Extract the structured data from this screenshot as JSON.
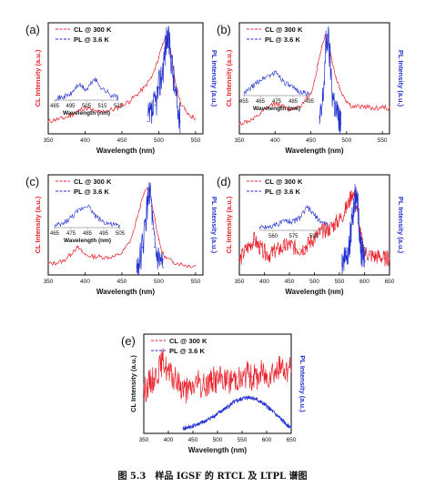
{
  "caption": "图 5.3　样品 IGSF 的 RTCL 及 LTPL 谱图",
  "colors": {
    "cl": "#e8212b",
    "pl": "#1f2fd0",
    "axis": "#000000",
    "box": "#9a9a9a"
  },
  "chart_data": [
    {
      "type": "line",
      "panel_label": "(a)",
      "xlabel": "Wavelength (nm)",
      "ylabel_left": "CL Intensity (a.u.)",
      "ylabel_right": "PL Intensity (a.u.)",
      "xlim": [
        350,
        560
      ],
      "xticks": [
        350,
        400,
        450,
        500,
        550
      ],
      "ylim": [
        0,
        1
      ],
      "legend_position": "top-left",
      "series": [
        {
          "name": "CL @ 300 K",
          "x": [
            350,
            360,
            370,
            380,
            390,
            400,
            410,
            420,
            430,
            440,
            450,
            460,
            470,
            480,
            490,
            495,
            500,
            505,
            510,
            515,
            520,
            525,
            530,
            535,
            540,
            545,
            550
          ],
          "values": [
            0.12,
            0.14,
            0.15,
            0.18,
            0.22,
            0.26,
            0.23,
            0.21,
            0.23,
            0.24,
            0.28,
            0.32,
            0.38,
            0.45,
            0.55,
            0.63,
            0.75,
            0.88,
            0.95,
            0.83,
            0.62,
            0.42,
            0.3,
            0.24,
            0.2,
            0.17,
            0.15
          ]
        },
        {
          "name": "PL @ 3.6 K",
          "x": [
            485,
            490,
            495,
            500,
            505,
            508,
            511,
            514,
            517,
            520,
            523,
            526,
            529
          ],
          "values": [
            0.12,
            0.18,
            0.28,
            0.45,
            0.62,
            0.78,
            0.95,
            0.9,
            0.75,
            0.55,
            0.38,
            0.22,
            0.12
          ]
        }
      ],
      "inset": {
        "xlabel": "Wavelength (nm)",
        "xticks": [
          485,
          495,
          505,
          515,
          525
        ],
        "x": [
          485,
          490,
          495,
          500,
          505,
          510,
          515,
          520,
          525
        ],
        "values": [
          0.05,
          0.1,
          0.2,
          0.55,
          0.35,
          0.75,
          0.4,
          0.2,
          0.08
        ]
      }
    },
    {
      "type": "line",
      "panel_label": "(b)",
      "xlabel": "Wavelength (nm)",
      "ylabel_left": "CL Intensity (a.u.)",
      "ylabel_right": "PL Intensity (a.u.)",
      "xlim": [
        350,
        560
      ],
      "xticks": [
        350,
        400,
        450,
        500,
        550
      ],
      "ylim": [
        0,
        1
      ],
      "legend_position": "top-left",
      "series": [
        {
          "name": "CL @ 300 K",
          "x": [
            350,
            360,
            370,
            380,
            390,
            400,
            410,
            420,
            430,
            440,
            450,
            455,
            460,
            465,
            470,
            475,
            480,
            485,
            490,
            495,
            500,
            505,
            510,
            520,
            530,
            540,
            550,
            560
          ],
          "values": [
            0.1,
            0.12,
            0.14,
            0.2,
            0.26,
            0.3,
            0.27,
            0.24,
            0.26,
            0.3,
            0.4,
            0.52,
            0.68,
            0.85,
            0.96,
            0.88,
            0.7,
            0.55,
            0.45,
            0.38,
            0.32,
            0.28,
            0.26,
            0.27,
            0.26,
            0.25,
            0.26,
            0.25
          ]
        },
        {
          "name": "PL @ 3.6 K",
          "x": [
            462,
            465,
            468,
            471,
            474,
            477,
            480,
            483,
            486,
            489,
            492
          ],
          "values": [
            0.1,
            0.2,
            0.45,
            0.85,
            0.96,
            0.7,
            0.4,
            0.3,
            0.2,
            0.14,
            0.1
          ]
        }
      ],
      "inset": {
        "xlabel": "Wavelength (nm)",
        "xticks": [
          455,
          465,
          475,
          485,
          495
        ],
        "x": [
          455,
          460,
          465,
          470,
          475,
          480,
          485,
          490,
          495
        ],
        "values": [
          0.05,
          0.3,
          0.55,
          0.7,
          0.8,
          0.45,
          0.25,
          0.12,
          0.05
        ]
      }
    },
    {
      "type": "line",
      "panel_label": "(c)",
      "xlabel": "Wavelength (nm)",
      "ylabel_left": "CL Intensity (a.u.)",
      "ylabel_right": "PL Intensity (a.u.)",
      "xlim": [
        350,
        560
      ],
      "xticks": [
        350,
        400,
        450,
        500,
        550
      ],
      "ylim": [
        0,
        1
      ],
      "legend_position": "top-left",
      "series": [
        {
          "name": "CL @ 300 K",
          "x": [
            350,
            360,
            370,
            380,
            385,
            390,
            395,
            400,
            410,
            420,
            430,
            440,
            450,
            460,
            465,
            470,
            475,
            480,
            485,
            490,
            495,
            500,
            505,
            510,
            520,
            530,
            540,
            550
          ],
          "values": [
            0.12,
            0.13,
            0.15,
            0.22,
            0.27,
            0.3,
            0.26,
            0.22,
            0.2,
            0.2,
            0.19,
            0.2,
            0.24,
            0.35,
            0.45,
            0.6,
            0.75,
            0.88,
            0.95,
            0.82,
            0.6,
            0.38,
            0.24,
            0.18,
            0.14,
            0.12,
            0.1,
            0.1
          ]
        },
        {
          "name": "PL @ 3.6 K",
          "x": [
            470,
            474,
            478,
            482,
            486,
            488,
            490,
            492,
            494,
            497,
            500,
            503,
            506
          ],
          "values": [
            0.08,
            0.15,
            0.3,
            0.55,
            0.85,
            0.95,
            0.75,
            0.5,
            0.3,
            0.2,
            0.15,
            0.12,
            0.08
          ]
        }
      ],
      "inset": {
        "xlabel": "Wavelength (nm)",
        "xticks": [
          465,
          475,
          485,
          495,
          505
        ],
        "x": [
          465,
          470,
          475,
          480,
          485,
          490,
          495,
          500,
          505
        ],
        "values": [
          0.05,
          0.12,
          0.35,
          0.6,
          0.8,
          0.4,
          0.2,
          0.1,
          0.05
        ]
      }
    },
    {
      "type": "line",
      "panel_label": "(d)",
      "xlabel": "Wavelength (nm)",
      "ylabel_left": "CL Intensity (a.u.)",
      "ylabel_right": "PL Intensity (a.u.)",
      "xlim": [
        350,
        650
      ],
      "xticks": [
        350,
        400,
        450,
        500,
        550,
        600,
        650
      ],
      "ylim": [
        0,
        1
      ],
      "legend_position": "top-left",
      "series": [
        {
          "name": "CL @ 300 K",
          "x": [
            350,
            360,
            370,
            380,
            390,
            400,
            410,
            420,
            430,
            440,
            450,
            460,
            470,
            480,
            490,
            500,
            510,
            520,
            530,
            540,
            550,
            560,
            570,
            575,
            580,
            585,
            590,
            595,
            600,
            610,
            620,
            630,
            640,
            650
          ],
          "values": [
            0.15,
            0.25,
            0.32,
            0.38,
            0.3,
            0.25,
            0.22,
            0.25,
            0.28,
            0.3,
            0.33,
            0.3,
            0.28,
            0.3,
            0.35,
            0.4,
            0.45,
            0.48,
            0.5,
            0.55,
            0.6,
            0.68,
            0.8,
            0.9,
            0.85,
            0.7,
            0.5,
            0.35,
            0.25,
            0.22,
            0.2,
            0.2,
            0.18,
            0.18
          ]
        },
        {
          "name": "PL @ 3.6 K",
          "x": [
            555,
            560,
            565,
            570,
            575,
            580,
            583,
            586,
            589,
            592,
            595,
            598,
            601
          ],
          "values": [
            0.12,
            0.2,
            0.25,
            0.35,
            0.55,
            0.78,
            0.92,
            0.8,
            0.55,
            0.35,
            0.22,
            0.18,
            0.15
          ]
        }
      ],
      "inset": {
        "xlabel": "",
        "xticks": [
          560,
          575,
          590
        ],
        "x": [
          550,
          555,
          560,
          565,
          570,
          575,
          580,
          585,
          590,
          595,
          600
        ],
        "values": [
          0.1,
          0.12,
          0.15,
          0.25,
          0.35,
          0.3,
          0.45,
          0.8,
          0.55,
          0.3,
          0.2
        ]
      }
    },
    {
      "type": "line",
      "panel_label": "(e)",
      "xlabel": "Wavelength (nm)",
      "ylabel_left": "CL Intensity (a.u.)",
      "ylabel_right": "PL Intensity (a.u.)",
      "xlim": [
        350,
        650
      ],
      "xticks": [
        350,
        400,
        450,
        500,
        550,
        600,
        650
      ],
      "ylim": [
        0,
        1
      ],
      "legend_position": "top-left",
      "series": [
        {
          "name": "CL @ 300 K",
          "x": [
            350,
            360,
            370,
            380,
            390,
            400,
            410,
            420,
            430,
            440,
            450,
            460,
            470,
            480,
            490,
            500,
            510,
            520,
            530,
            540,
            550,
            560,
            570,
            580,
            590,
            600,
            610,
            620,
            630,
            640,
            650
          ],
          "values": [
            0.45,
            0.55,
            0.6,
            0.7,
            0.8,
            0.65,
            0.6,
            0.55,
            0.5,
            0.45,
            0.52,
            0.55,
            0.5,
            0.55,
            0.6,
            0.58,
            0.62,
            0.55,
            0.6,
            0.62,
            0.58,
            0.65,
            0.62,
            0.6,
            0.68,
            0.62,
            0.7,
            0.68,
            0.72,
            0.7,
            0.72
          ]
        },
        {
          "name": "PL @ 3.6 K",
          "x": [
            430,
            450,
            470,
            490,
            510,
            530,
            550,
            565,
            580,
            600,
            620,
            640,
            650
          ],
          "values": [
            0.05,
            0.08,
            0.12,
            0.18,
            0.25,
            0.33,
            0.38,
            0.4,
            0.37,
            0.3,
            0.2,
            0.1,
            0.06
          ]
        }
      ]
    }
  ]
}
